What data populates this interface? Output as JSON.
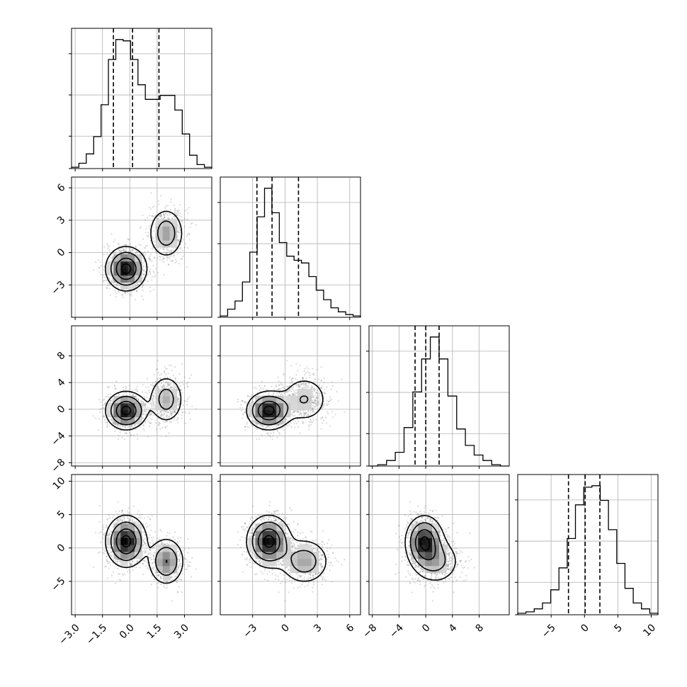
{
  "chart_data": {
    "type": "scatter",
    "title": "",
    "parameters": [
      {
        "index": 0,
        "range": [
          -3.2,
          4.5
        ],
        "ticks": [
          "−3.0",
          "−1.5",
          "0.0",
          "1.5",
          "3.0"
        ],
        "tick_values": [
          -3.0,
          -1.5,
          0.0,
          1.5,
          3.0
        ],
        "quantiles": [
          -0.9,
          0.15,
          1.6
        ]
      },
      {
        "index": 1,
        "range": [
          -6.0,
          7.0
        ],
        "ticks": [
          "−3",
          "0",
          "3",
          "6"
        ],
        "tick_values": [
          -3,
          0,
          3,
          6
        ],
        "quantiles": [
          -2.6,
          -1.2,
          1.25
        ]
      },
      {
        "index": 2,
        "range": [
          -8.5,
          12.5
        ],
        "ticks": [
          "−8",
          "−4",
          "0",
          "4",
          "8"
        ],
        "tick_values": [
          -8,
          -4,
          0,
          4,
          8
        ],
        "quantiles": [
          -1.6,
          0.0,
          2.0
        ]
      },
      {
        "index": 3,
        "range": [
          -10.0,
          11.0
        ],
        "ticks": [
          "−5",
          "0",
          "5",
          "10"
        ],
        "tick_values": [
          -5,
          0,
          5,
          10
        ],
        "quantiles": [
          -2.4,
          0.1,
          2.3
        ]
      }
    ],
    "histograms": [
      {
        "param": 0,
        "counts": [
          1,
          4,
          11,
          24,
          48,
          82,
          97,
          96,
          82,
          63,
          52,
          52,
          55,
          55,
          44,
          26,
          10,
          3,
          1
        ]
      },
      {
        "param": 1,
        "counts": [
          1,
          6,
          12,
          26,
          48,
          74,
          95,
          77,
          55,
          45,
          42,
          40,
          30,
          20,
          13,
          7,
          4,
          2,
          1
        ]
      },
      {
        "param": 2,
        "counts": [
          0,
          1,
          4,
          10,
          28,
          54,
          78,
          94,
          78,
          51,
          27,
          15,
          8,
          4,
          1,
          0
        ]
      },
      {
        "param": 3,
        "counts": [
          1,
          2,
          4,
          8,
          17,
          32,
          52,
          75,
          87,
          88,
          78,
          58,
          35,
          18,
          8,
          4,
          1
        ]
      }
    ],
    "mixture_components": [
      {
        "weight": 0.65,
        "mean": [
          -0.2,
          -1.5,
          -0.2,
          1.0
        ],
        "sd": [
          0.55,
          1.0,
          1.4,
          1.9
        ]
      },
      {
        "weight": 0.35,
        "mean": [
          2.0,
          1.8,
          1.5,
          -2.0
        ],
        "sd": [
          0.5,
          1.2,
          1.9,
          1.8
        ]
      }
    ],
    "grid": true,
    "legend": "none"
  }
}
